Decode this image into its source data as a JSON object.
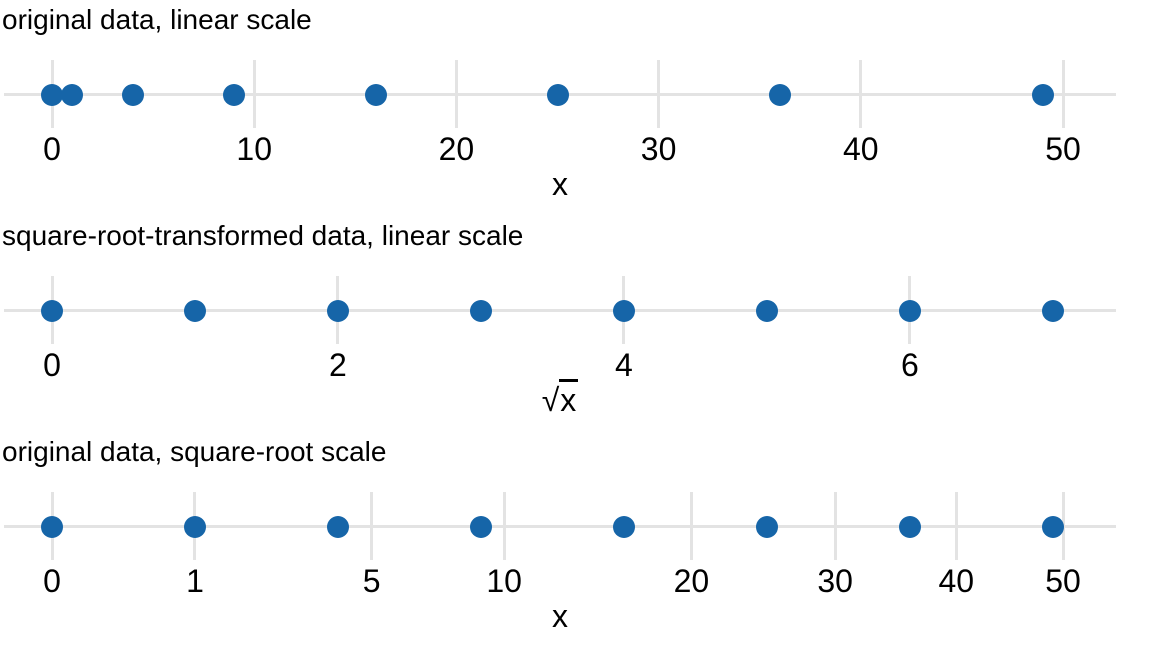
{
  "figure": {
    "background": "#ffffff",
    "point_color": "#1665a8",
    "axis_color": "#e3e3e3",
    "text_color": "#000000"
  },
  "chart_data": [
    {
      "type": "scatter",
      "panel": "top",
      "title": "original data, linear scale",
      "xlabel": "x",
      "xlabel_sqrt_overline": false,
      "scale": "linear",
      "xlim": [
        0,
        50
      ],
      "ticks": [
        0,
        10,
        20,
        30,
        40,
        50
      ],
      "points": [
        0,
        1,
        4,
        9,
        16,
        25,
        36,
        49
      ],
      "grid": false,
      "legend": "none"
    },
    {
      "type": "scatter",
      "panel": "middle",
      "title": "square-root-transformed data, linear scale",
      "xlabel": "√x",
      "xlabel_sqrt_overline": true,
      "scale": "linear",
      "xlim": [
        0,
        7.0711
      ],
      "ticks": [
        0,
        2,
        4,
        6
      ],
      "points": [
        0,
        1,
        2,
        3,
        4,
        5,
        6,
        7
      ],
      "grid": false,
      "legend": "none"
    },
    {
      "type": "scatter",
      "panel": "bottom",
      "title": "original data, square-root scale",
      "xlabel": "x",
      "xlabel_sqrt_overline": false,
      "scale": "sqrt",
      "xlim": [
        0,
        50
      ],
      "ticks": [
        0,
        1,
        5,
        10,
        20,
        30,
        40,
        50
      ],
      "points": [
        0,
        1,
        4,
        9,
        16,
        25,
        36,
        49
      ],
      "grid": false,
      "legend": "none"
    }
  ]
}
